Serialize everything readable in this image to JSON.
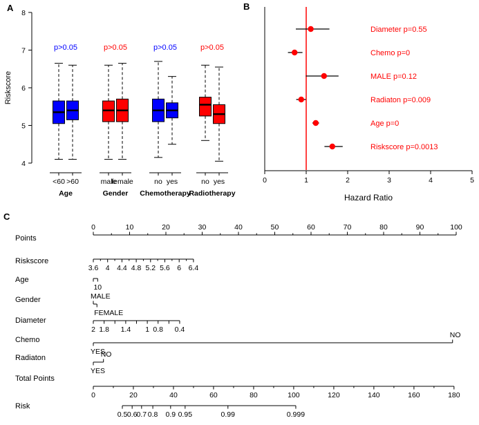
{
  "chart_data": [
    {
      "type": "boxplot",
      "panel": "A",
      "ylabel": "Riskscore",
      "ylim": [
        4,
        8
      ],
      "yticks": [
        4,
        5,
        6,
        7,
        8
      ],
      "groups": [
        {
          "name": "Age",
          "pvalue": "p>0.05",
          "p_color": "#0000FF",
          "box_color": "#0000FF",
          "boxes": [
            {
              "label": "<60",
              "low": 4.1,
              "q1": 5.05,
              "med": 5.35,
              "q3": 5.65,
              "high": 6.65
            },
            {
              "label": ">60",
              "low": 4.1,
              "q1": 5.15,
              "med": 5.4,
              "q3": 5.65,
              "high": 6.6
            }
          ]
        },
        {
          "name": "Gender",
          "pvalue": "p>0.05",
          "p_color": "#FF0000",
          "box_color": "#FF0000",
          "boxes": [
            {
              "label": "male",
              "low": 4.1,
              "q1": 5.1,
              "med": 5.4,
              "q3": 5.65,
              "high": 6.6
            },
            {
              "label": "female",
              "low": 4.1,
              "q1": 5.1,
              "med": 5.4,
              "q3": 5.7,
              "high": 6.65
            }
          ]
        },
        {
          "name": "Chemotherapy",
          "pvalue": "p>0.05",
          "p_color": "#0000FF",
          "box_color": "#0000FF",
          "boxes": [
            {
              "label": "no",
              "low": 4.15,
              "q1": 5.1,
              "med": 5.4,
              "q3": 5.7,
              "high": 6.7
            },
            {
              "label": "yes",
              "low": 4.5,
              "q1": 5.2,
              "med": 5.4,
              "q3": 5.6,
              "high": 6.3
            }
          ]
        },
        {
          "name": "Radiotherapy",
          "pvalue": "p>0.05",
          "p_color": "#FF0000",
          "box_color": "#FF0000",
          "boxes": [
            {
              "label": "no",
              "low": 4.6,
              "q1": 5.25,
              "med": 5.55,
              "q3": 5.75,
              "high": 6.6
            },
            {
              "label": "yes",
              "low": 4.05,
              "q1": 5.05,
              "med": 5.3,
              "q3": 5.55,
              "high": 6.55
            }
          ]
        }
      ]
    },
    {
      "type": "forest",
      "panel": "B",
      "xlabel": "Hazard Ratio",
      "xlim": [
        0,
        5
      ],
      "xticks": [
        0,
        1,
        2,
        3,
        4,
        5
      ],
      "ref_line": 1,
      "accent": "#FF0000",
      "items": [
        {
          "label": "Diameter  p=0.55",
          "hr": 1.11,
          "lo": 0.75,
          "hi": 1.56
        },
        {
          "label": "Chemo  p=0",
          "hr": 0.72,
          "lo": 0.56,
          "hi": 0.91
        },
        {
          "label": "MALE  p=0.12",
          "hr": 1.43,
          "lo": 0.99,
          "hi": 1.78
        },
        {
          "label": "Radiaton  p=0.009",
          "hr": 0.88,
          "lo": 0.76,
          "hi": 0.99
        },
        {
          "label": "Age  p=0",
          "hr": 1.23,
          "lo": 1.15,
          "hi": 1.31
        },
        {
          "label": "Riskscore  p=0.0013",
          "hr": 1.63,
          "lo": 1.44,
          "hi": 1.88
        }
      ]
    },
    {
      "type": "nomogram",
      "panel": "C",
      "rows": [
        {
          "name": "Points",
          "start": 0,
          "end": 1,
          "minor": true,
          "ticks": [
            {
              "p": 0,
              "t": "0"
            },
            {
              "p": 0.1,
              "t": "10"
            },
            {
              "p": 0.2,
              "t": "20"
            },
            {
              "p": 0.3,
              "t": "30"
            },
            {
              "p": 0.4,
              "t": "40"
            },
            {
              "p": 0.5,
              "t": "50"
            },
            {
              "p": 0.6,
              "t": "60"
            },
            {
              "p": 0.7,
              "t": "70"
            },
            {
              "p": 0.8,
              "t": "80"
            },
            {
              "p": 0.9,
              "t": "90"
            },
            {
              "p": 1,
              "t": "100"
            }
          ]
        },
        {
          "name": "Riskscore",
          "start": 0,
          "end": 0.276,
          "minor": true,
          "ticks": [
            {
              "p": 0,
              "t": "3.6"
            },
            {
              "p": 0.0394,
              "t": "4"
            },
            {
              "p": 0.0789,
              "t": "4.4"
            },
            {
              "p": 0.1183,
              "t": "4.8"
            },
            {
              "p": 0.1577,
              "t": "5.2"
            },
            {
              "p": 0.1971,
              "t": "5.6"
            },
            {
              "p": 0.2366,
              "t": "6"
            },
            {
              "p": 0.276,
              "t": "6.4"
            }
          ]
        },
        {
          "name": "Age",
          "start": 0,
          "end": 0.012,
          "ticks": [
            {
              "p": 0,
              "t": ""
            },
            {
              "p": 0.012,
              "t": "10"
            }
          ]
        },
        {
          "name": "Gender",
          "start": 0,
          "end": 0.01,
          "ticks": [
            {
              "p": 0,
              "t": "MALE",
              "side": "a"
            },
            {
              "p": 0.01,
              "t": "FEMALE",
              "side": "b"
            }
          ]
        },
        {
          "name": "Diameter",
          "start": 0,
          "end": 0.238,
          "ticks": [
            {
              "p": 0,
              "t": "2"
            },
            {
              "p": 0.0298,
              "t": "1.8"
            },
            {
              "p": 0.0595,
              "t": ""
            },
            {
              "p": 0.0893,
              "t": "1.4"
            },
            {
              "p": 0.119,
              "t": ""
            },
            {
              "p": 0.1488,
              "t": "1"
            },
            {
              "p": 0.1785,
              "t": "0.8"
            },
            {
              "p": 0.2083,
              "t": ""
            },
            {
              "p": 0.238,
              "t": "0.4"
            }
          ]
        },
        {
          "name": "Chemo",
          "start": 0,
          "end": 0.99,
          "ticks": [
            {
              "p": 0,
              "t": "YES",
              "side": "b"
            },
            {
              "p": 0.99,
              "t": "NO",
              "side": "a"
            }
          ]
        },
        {
          "name": "Radiaton",
          "start": 0,
          "end": 0.028,
          "ticks": [
            {
              "p": 0,
              "t": "YES",
              "side": "b"
            },
            {
              "p": 0.028,
              "t": "NO",
              "side": "a"
            }
          ]
        },
        {
          "name": "Total Points",
          "start": 0,
          "end": 0.994,
          "minor": true,
          "ticks": [
            {
              "p": 0,
              "t": "0"
            },
            {
              "p": 0.1104,
              "t": "20"
            },
            {
              "p": 0.2209,
              "t": "40"
            },
            {
              "p": 0.3313,
              "t": "60"
            },
            {
              "p": 0.4418,
              "t": "80"
            },
            {
              "p": 0.5522,
              "t": "100"
            },
            {
              "p": 0.6627,
              "t": "120"
            },
            {
              "p": 0.7731,
              "t": "140"
            },
            {
              "p": 0.8836,
              "t": "160"
            },
            {
              "p": 0.994,
              "t": "180"
            }
          ]
        },
        {
          "name": "Risk",
          "start": 0.08,
          "end": 0.558,
          "ticks": [
            {
              "p": 0.08,
              "t": "0.5"
            },
            {
              "p": 0.107,
              "t": "0.6"
            },
            {
              "p": 0.133,
              "t": "0.7"
            },
            {
              "p": 0.164,
              "t": "0.8"
            },
            {
              "p": 0.213,
              "t": "0.9"
            },
            {
              "p": 0.253,
              "t": "0.95"
            },
            {
              "p": 0.371,
              "t": "0.99"
            },
            {
              "p": 0.558,
              "t": "0.999"
            }
          ]
        }
      ]
    }
  ]
}
